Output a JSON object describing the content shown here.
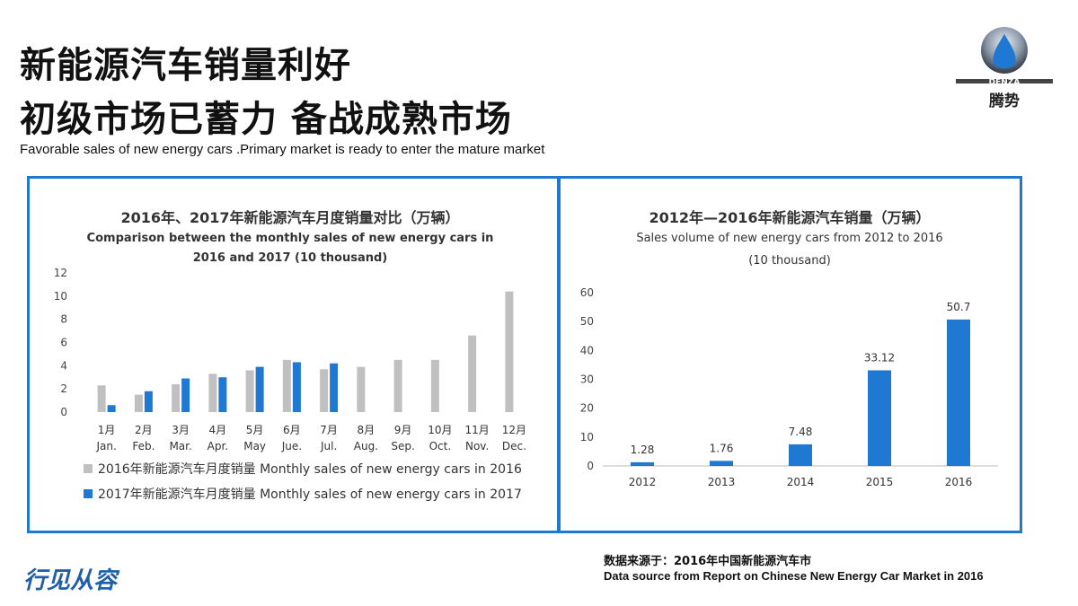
{
  "header": {
    "title_line1": "新能源汽车销量利好",
    "title_line2": "初级市场已蓄力 备战成熟市场",
    "subtitle": "Favorable sales of new energy cars .Primary market is ready to enter the mature market"
  },
  "logo": {
    "brand_en": "DENZA",
    "brand_cn": "腾势",
    "icon": "denza-logo-icon"
  },
  "bottom_logo": {
    "text": "行见从容"
  },
  "source": {
    "line1": "数据来源于：2016年中国新能源汽车市",
    "line2": "Data source from Report on Chinese New Energy Car Market in 2016"
  },
  "colors": {
    "series2016": "#c0c0c0",
    "series2017": "#1f78d1",
    "bar_right": "#1f78d1",
    "frame": "#1f78d1"
  },
  "chart_data": [
    {
      "type": "bar",
      "title": "2016年、2017年新能源汽车月度销量对比（万辆）",
      "subtitle_line1": "Comparison between the monthly sales of new energy cars in",
      "subtitle_line2": "2016 and 2017 (10 thousand)",
      "categories_cn": [
        "1月",
        "2月",
        "3月",
        "4月",
        "5月",
        "6月",
        "7月",
        "8月",
        "9月",
        "10月",
        "11月",
        "12月"
      ],
      "categories_en": [
        "Jan.",
        "Feb.",
        "Mar.",
        "Apr.",
        "May",
        "Jue.",
        "Jul.",
        "Aug.",
        "Sep.",
        "Oct.",
        "Nov.",
        "Dec."
      ],
      "yticks": [
        0,
        2,
        4,
        6,
        8,
        10,
        12
      ],
      "ylim": [
        0,
        12
      ],
      "series": [
        {
          "name": "2016年新能源汽车月度销量  Monthly sales of new energy cars in 2016",
          "values": [
            2.3,
            1.5,
            2.4,
            3.3,
            3.6,
            4.5,
            3.7,
            3.9,
            4.5,
            4.5,
            6.6,
            10.4
          ]
        },
        {
          "name": "2017年新能源汽车月度销量  Monthly sales of new energy cars in 2017",
          "values": [
            0.6,
            1.8,
            2.9,
            3.0,
            3.9,
            4.3,
            4.2,
            null,
            null,
            null,
            null,
            null
          ]
        }
      ],
      "legend_position": "bottom",
      "grid": false
    },
    {
      "type": "bar",
      "title": "2012年—2016年新能源汽车销量（万辆）",
      "subtitle_line1": "Sales volume of new energy cars from 2012 to 2016",
      "subtitle_line2": "(10 thousand)",
      "categories": [
        "2012",
        "2013",
        "2014",
        "2015",
        "2016"
      ],
      "values": [
        1.28,
        1.76,
        7.48,
        33.12,
        50.7
      ],
      "value_labels": [
        "1.28",
        "1.76",
        "7.48",
        "33.12",
        "50.7"
      ],
      "yticks": [
        0,
        10,
        20,
        30,
        40,
        50,
        60
      ],
      "ylim": [
        0,
        60
      ],
      "grid": false
    }
  ]
}
